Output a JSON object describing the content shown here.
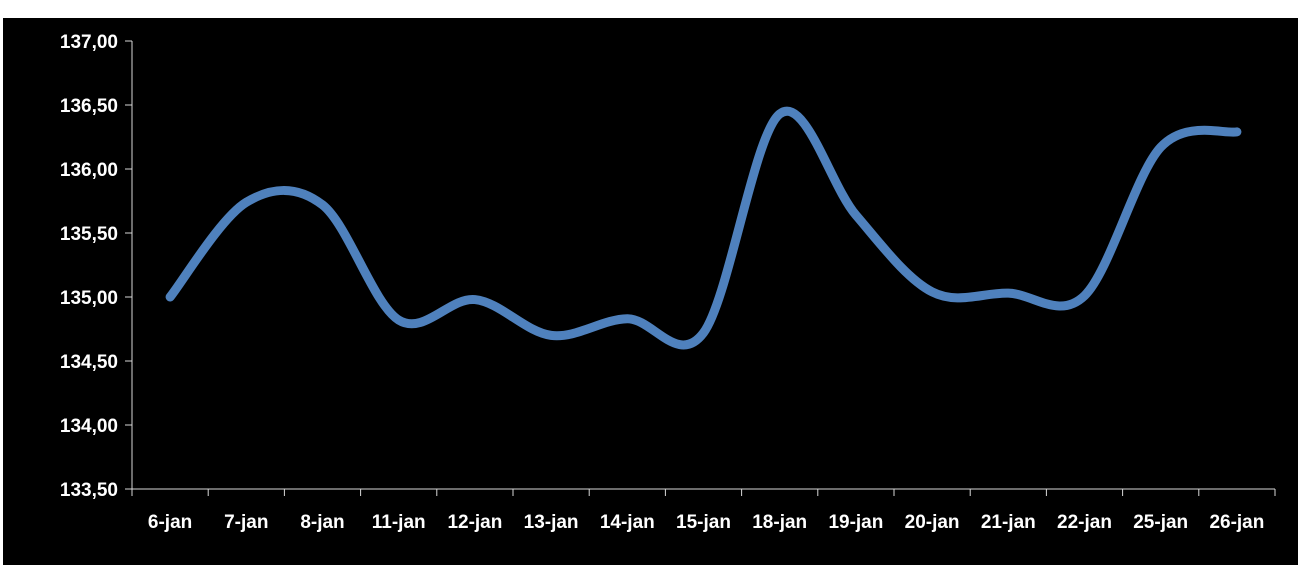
{
  "chart_data": {
    "type": "line",
    "title": "",
    "xlabel": "",
    "ylabel": "",
    "categories": [
      "6-jan",
      "7-jan",
      "8-jan",
      "11-jan",
      "12-jan",
      "13-jan",
      "14-jan",
      "15-jan",
      "18-jan",
      "19-jan",
      "20-jan",
      "21-jan",
      "22-jan",
      "25-jan",
      "26-jan"
    ],
    "series": [
      {
        "values": [
          135.0,
          135.74,
          135.72,
          134.82,
          134.98,
          134.7,
          134.83,
          134.72,
          136.43,
          135.64,
          135.04,
          135.03,
          135.01,
          136.17,
          136.29
        ],
        "color": "#4f81bd"
      }
    ],
    "ylim": [
      133.5,
      137.0
    ],
    "yticks": [
      "133,50",
      "134,00",
      "134,50",
      "135,00",
      "135,50",
      "136,00",
      "136,50",
      "137,00"
    ],
    "ytick_values": [
      133.5,
      134.0,
      134.5,
      135.0,
      135.5,
      136.0,
      136.5,
      137.0
    ],
    "grid": false,
    "legend": "none",
    "smooth": true,
    "background": "#000000",
    "text_color": "#ffffff",
    "axis_color": "#d9d9d9"
  }
}
